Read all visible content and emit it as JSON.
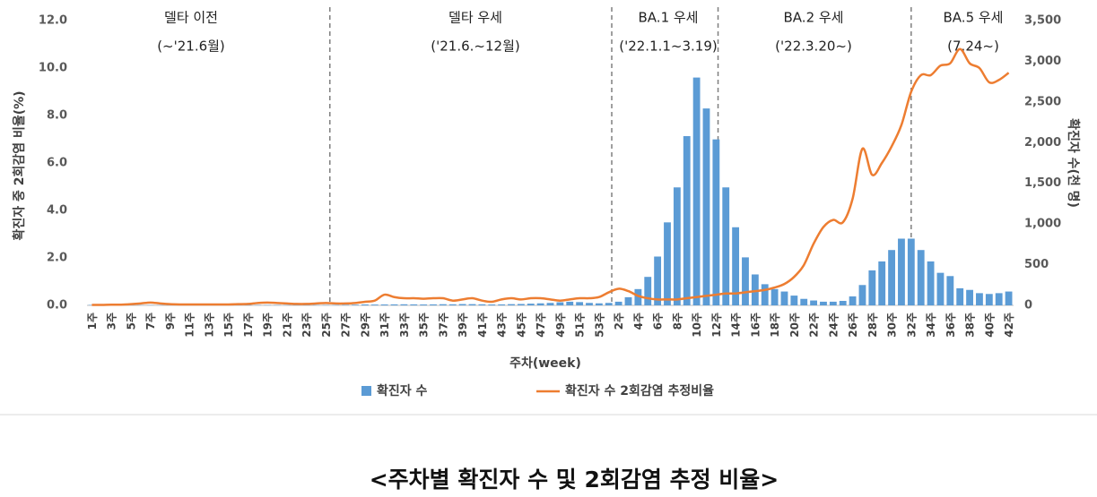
{
  "chart_data": {
    "type": "combo",
    "title": "<주차별 확진자 수 및 2회감염 추정 비율>",
    "x_label": "주차(week)",
    "y_label": "확진자 중 2회감염 비율(%)",
    "y2_label": "확진자 수(천 명)",
    "annotations": [
      {
        "label": "델타 이전",
        "dates": "(~'21.6월)"
      },
      {
        "label": "델타 우세",
        "dates": "('21.6.~12월)"
      },
      {
        "label": "BA.1 우세",
        "dates": "('22.1.1~3.19)"
      },
      {
        "label": "BA.2 우세",
        "dates": "('22.3.20~)"
      },
      {
        "label": "BA.5 우세",
        "dates": "(7.24~)"
      }
    ],
    "categories": [
      "1주",
      null,
      "3주",
      null,
      "5주",
      null,
      "7주",
      null,
      "9주",
      null,
      "11주",
      null,
      "13주",
      null,
      "15주",
      null,
      "17주",
      null,
      "19주",
      null,
      "21주",
      null,
      "23주",
      null,
      "25주",
      null,
      "27주",
      null,
      "29주",
      null,
      "31주",
      null,
      "33주",
      null,
      "35주",
      null,
      "37주",
      null,
      "39주",
      null,
      "41주",
      null,
      "43주",
      null,
      "45주",
      null,
      "47주",
      null,
      "49주",
      null,
      "51주",
      null,
      "53주",
      null,
      "2주",
      null,
      "4주",
      null,
      "6주",
      null,
      "8주",
      null,
      "10주",
      null,
      "12주",
      null,
      "14주",
      null,
      "16주",
      null,
      "18주",
      null,
      "20주",
      null,
      "22주",
      null,
      "24주",
      null,
      "26주",
      null,
      "28주",
      null,
      "30주",
      null,
      "32주",
      null,
      "34주",
      null,
      "36주",
      null,
      "38주",
      null,
      "40주",
      null,
      "42주"
    ],
    "series": [
      {
        "name": "확진자 수",
        "type": "bar",
        "axis": "y2",
        "color": "#5b9bd5",
        "values": [
          5,
          4,
          3,
          2.5,
          2.5,
          2.5,
          3,
          3,
          3,
          3,
          3,
          3,
          3.5,
          4,
          4,
          4.5,
          4,
          4,
          4,
          4,
          3.5,
          3.5,
          3.5,
          4,
          4,
          4.5,
          6,
          8,
          11,
          10,
          11,
          12,
          13,
          12,
          11,
          12,
          14,
          13,
          16,
          15,
          13,
          11,
          12,
          15,
          17,
          21,
          25,
          30,
          38,
          45,
          40,
          30,
          25,
          30,
          45,
          100,
          200,
          350,
          600,
          1020,
          1450,
          2080,
          2800,
          2420,
          2040,
          1450,
          960,
          590,
          380,
          260,
          200,
          170,
          120,
          80,
          60,
          45,
          45,
          55,
          110,
          250,
          430,
          540,
          680,
          820,
          820,
          680,
          540,
          400,
          360,
          210,
          190,
          150,
          140,
          150,
          170
        ]
      },
      {
        "name": "확진자 수 2회감염 추정비율",
        "type": "line",
        "color": "#ed7d31",
        "values": [
          0.02,
          0.02,
          0.03,
          0.03,
          0.05,
          0.08,
          0.12,
          0.08,
          0.05,
          0.04,
          0.04,
          0.04,
          0.04,
          0.04,
          0.04,
          0.05,
          0.06,
          0.1,
          0.12,
          0.1,
          0.08,
          0.06,
          0.06,
          0.08,
          0.1,
          0.08,
          0.08,
          0.1,
          0.15,
          0.2,
          0.45,
          0.35,
          0.3,
          0.3,
          0.28,
          0.3,
          0.3,
          0.2,
          0.25,
          0.3,
          0.2,
          0.15,
          0.25,
          0.3,
          0.25,
          0.3,
          0.3,
          0.25,
          0.2,
          0.25,
          0.3,
          0.3,
          0.35,
          0.55,
          0.7,
          0.6,
          0.4,
          0.3,
          0.25,
          0.25,
          0.25,
          0.3,
          0.35,
          0.4,
          0.45,
          0.5,
          0.5,
          0.55,
          0.6,
          0.65,
          0.75,
          0.9,
          1.2,
          1.7,
          2.6,
          3.3,
          3.6,
          3.5,
          4.5,
          6.6,
          5.5,
          6.0,
          6.7,
          7.6,
          9.0,
          9.7,
          9.7,
          10.1,
          10.2,
          10.8,
          10.2,
          10.0,
          9.4,
          9.5,
          9.8
        ]
      }
    ],
    "ylim": [
      0,
      12
    ],
    "yticks": [
      {
        "value": 0,
        "label": "0.0"
      },
      {
        "value": 2,
        "label": "2.0"
      },
      {
        "value": 4,
        "label": "4.0"
      },
      {
        "value": 6,
        "label": "6.0"
      },
      {
        "value": 8,
        "label": "8.0"
      },
      {
        "value": 10,
        "label": "10.0"
      },
      {
        "value": 12,
        "label": "12.0"
      }
    ],
    "y2lim": [
      0,
      3500
    ],
    "y2ticks": [
      0,
      500,
      {
        "value": 1000,
        "label": "1,000"
      },
      {
        "value": 1500,
        "label": "1,500"
      },
      {
        "value": 2000,
        "label": "2,000"
      },
      {
        "value": 2500,
        "label": "2,500"
      },
      {
        "value": 3000,
        "label": "3,000"
      },
      {
        "value": 3500,
        "label": "3,500"
      }
    ],
    "grid": false,
    "legend": "bottom"
  }
}
